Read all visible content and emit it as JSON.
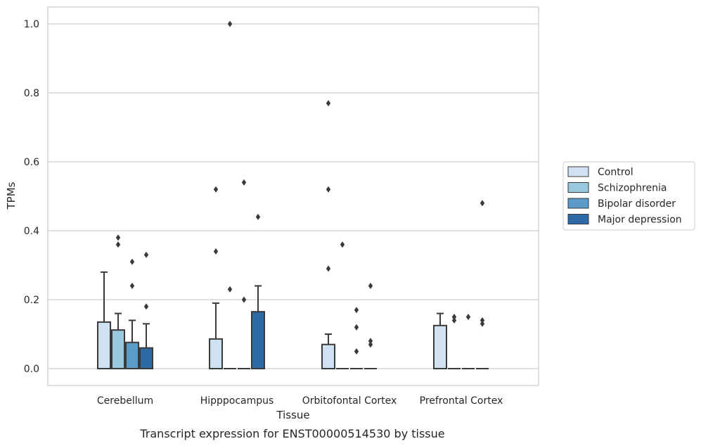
{
  "caption": "Transcript expression for ENST00000514530 by tissue",
  "chart_data": {
    "type": "box",
    "title": "",
    "xlabel": "Tissue",
    "ylabel": "TPMs",
    "ylim": [
      -0.05,
      1.05
    ],
    "yticks": [
      0.0,
      0.2,
      0.4,
      0.6,
      0.8,
      1.0
    ],
    "ytick_labels": [
      "0.0",
      "0.2",
      "0.4",
      "0.6",
      "0.8",
      "1.0"
    ],
    "grid": true,
    "legend_position": "right",
    "categories": [
      "Cerebellum",
      "Hipppocampus",
      "Orbitofontal Cortex",
      "Prefrontal Cortex"
    ],
    "series": [
      {
        "name": "Control",
        "color": "#d0e1f1",
        "boxes": [
          {
            "q1": 0.0,
            "median": 0.0,
            "q3": 0.135,
            "whisker_low": 0.0,
            "whisker_high": 0.28,
            "outliers": []
          },
          {
            "q1": 0.0,
            "median": 0.0,
            "q3": 0.086,
            "whisker_low": 0.0,
            "whisker_high": 0.19,
            "outliers": [
              0.52,
              0.34
            ]
          },
          {
            "q1": 0.0,
            "median": 0.0,
            "q3": 0.07,
            "whisker_low": 0.0,
            "whisker_high": 0.1,
            "outliers": [
              0.77,
              0.52,
              0.29
            ]
          },
          {
            "q1": 0.0,
            "median": 0.0,
            "q3": 0.125,
            "whisker_low": 0.0,
            "whisker_high": 0.16,
            "outliers": []
          }
        ]
      },
      {
        "name": "Schizophrenia",
        "color": "#9ac8e0",
        "boxes": [
          {
            "q1": 0.0,
            "median": 0.0,
            "q3": 0.112,
            "whisker_low": 0.0,
            "whisker_high": 0.16,
            "outliers": [
              0.38,
              0.36
            ]
          },
          {
            "q1": 0.0,
            "median": 0.0,
            "q3": 0.0,
            "whisker_low": 0.0,
            "whisker_high": 0.0,
            "outliers": [
              1.0,
              0.23
            ]
          },
          {
            "q1": 0.0,
            "median": 0.0,
            "q3": 0.0,
            "whisker_low": 0.0,
            "whisker_high": 0.0,
            "outliers": [
              0.36
            ]
          },
          {
            "q1": 0.0,
            "median": 0.0,
            "q3": 0.0,
            "whisker_low": 0.0,
            "whisker_high": 0.0,
            "outliers": [
              0.15,
              0.14
            ]
          }
        ]
      },
      {
        "name": "Bipolar disorder",
        "color": "#5b9bc9",
        "boxes": [
          {
            "q1": 0.0,
            "median": 0.0,
            "q3": 0.076,
            "whisker_low": 0.0,
            "whisker_high": 0.14,
            "outliers": [
              0.31,
              0.24
            ]
          },
          {
            "q1": 0.0,
            "median": 0.0,
            "q3": 0.0,
            "whisker_low": 0.0,
            "whisker_high": 0.0,
            "outliers": [
              0.54,
              0.2
            ]
          },
          {
            "q1": 0.0,
            "median": 0.0,
            "q3": 0.0,
            "whisker_low": 0.0,
            "whisker_high": 0.0,
            "outliers": [
              0.17,
              0.12,
              0.05
            ]
          },
          {
            "q1": 0.0,
            "median": 0.0,
            "q3": 0.0,
            "whisker_low": 0.0,
            "whisker_high": 0.0,
            "outliers": [
              0.15
            ]
          }
        ]
      },
      {
        "name": "Major depression",
        "color": "#2d6aa8",
        "boxes": [
          {
            "q1": 0.0,
            "median": 0.0,
            "q3": 0.06,
            "whisker_low": 0.0,
            "whisker_high": 0.13,
            "outliers": [
              0.33,
              0.18
            ]
          },
          {
            "q1": 0.0,
            "median": 0.0,
            "q3": 0.165,
            "whisker_low": 0.0,
            "whisker_high": 0.24,
            "outliers": [
              0.44
            ]
          },
          {
            "q1": 0.0,
            "median": 0.0,
            "q3": 0.0,
            "whisker_low": 0.0,
            "whisker_high": 0.0,
            "outliers": [
              0.24,
              0.08,
              0.07
            ]
          },
          {
            "q1": 0.0,
            "median": 0.0,
            "q3": 0.0,
            "whisker_low": 0.0,
            "whisker_high": 0.0,
            "outliers": [
              0.48,
              0.14,
              0.13
            ]
          }
        ]
      }
    ]
  }
}
